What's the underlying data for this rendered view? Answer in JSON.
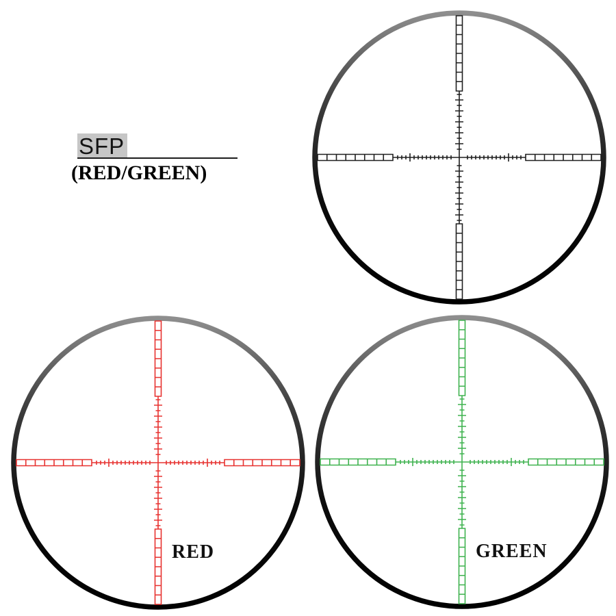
{
  "header": {
    "title": "SFP",
    "subtitle": "(RED/GREEN)"
  },
  "scopes": [
    {
      "name": "sfp-black-reticle",
      "label": "",
      "color": "#1f1f1f"
    },
    {
      "name": "sfp-red-reticle",
      "label": "RED",
      "color": "#e73230"
    },
    {
      "name": "sfp-green-reticle",
      "label": "GREEN",
      "color": "#3fb24f"
    }
  ],
  "ring_colors": {
    "top_highlight": "#8e8e8e",
    "mid": "#3f3f3f",
    "bottom": "#000000"
  }
}
